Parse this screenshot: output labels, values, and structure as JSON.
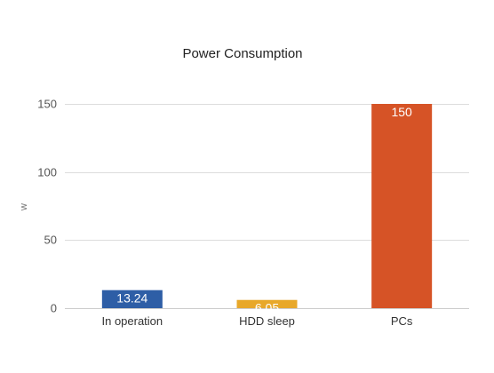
{
  "chart_data": {
    "type": "bar",
    "title": "Power Consumption",
    "xlabel": "",
    "ylabel": "w",
    "categories": [
      "In operation",
      "HDD sleep",
      "PCs"
    ],
    "values": [
      13.24,
      6.05,
      150
    ],
    "value_labels": [
      "13.24",
      "6.05",
      "150"
    ],
    "bar_colors": [
      "#2E5EA6",
      "#E8A82A",
      "#D65326"
    ],
    "ylim": [
      0,
      150
    ],
    "yticks": [
      0,
      50,
      100,
      150
    ],
    "ytick_labels": [
      "0",
      "50",
      "100",
      "150"
    ],
    "grid": true,
    "legend": false
  }
}
